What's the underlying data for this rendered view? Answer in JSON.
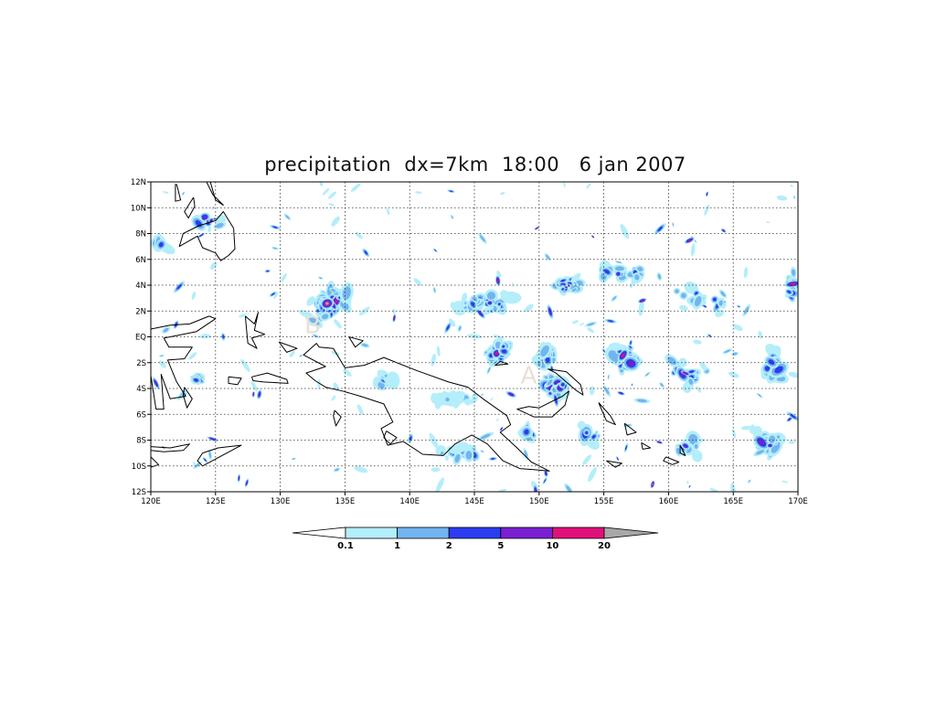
{
  "title": "precipitation  dx=7km  18:00   6 jan 2007",
  "map": {
    "lon_range": [
      120,
      170
    ],
    "lat_range": [
      -12,
      12
    ],
    "lon_ticks": [
      {
        "value": 120,
        "label": "120E"
      },
      {
        "value": 125,
        "label": "125E"
      },
      {
        "value": 130,
        "label": "130E"
      },
      {
        "value": 135,
        "label": "135E"
      },
      {
        "value": 140,
        "label": "140E"
      },
      {
        "value": 145,
        "label": "145E"
      },
      {
        "value": 150,
        "label": "150E"
      },
      {
        "value": 155,
        "label": "155E"
      },
      {
        "value": 160,
        "label": "160E"
      },
      {
        "value": 165,
        "label": "165E"
      },
      {
        "value": 170,
        "label": "170E"
      }
    ],
    "lat_ticks": [
      {
        "value": 12,
        "label": "12N"
      },
      {
        "value": 10,
        "label": "10N"
      },
      {
        "value": 8,
        "label": "8N"
      },
      {
        "value": 6,
        "label": "6N"
      },
      {
        "value": 4,
        "label": "4N"
      },
      {
        "value": 2,
        "label": "2N"
      },
      {
        "value": 0,
        "label": "EQ"
      },
      {
        "value": -2,
        "label": "2S"
      },
      {
        "value": -4,
        "label": "4S"
      },
      {
        "value": -6,
        "label": "6S"
      },
      {
        "value": -8,
        "label": "8S"
      },
      {
        "value": -10,
        "label": "10S"
      },
      {
        "value": -12,
        "label": "12S"
      }
    ],
    "gridlines": "dotted",
    "annotations": [
      {
        "label": "B",
        "lon": 132.5,
        "lat": 0.3
      },
      {
        "label": "A",
        "lon": 149.2,
        "lat": -3.6
      }
    ]
  },
  "colorbar": {
    "levels": [
      "0.1",
      "1",
      "2",
      "5",
      "10",
      "20"
    ],
    "colors": [
      "#ffffff",
      "#b4eefa",
      "#73b4f0",
      "#2b3cf0",
      "#7a1ed2",
      "#e0107a",
      "#a8a8a8"
    ]
  }
}
